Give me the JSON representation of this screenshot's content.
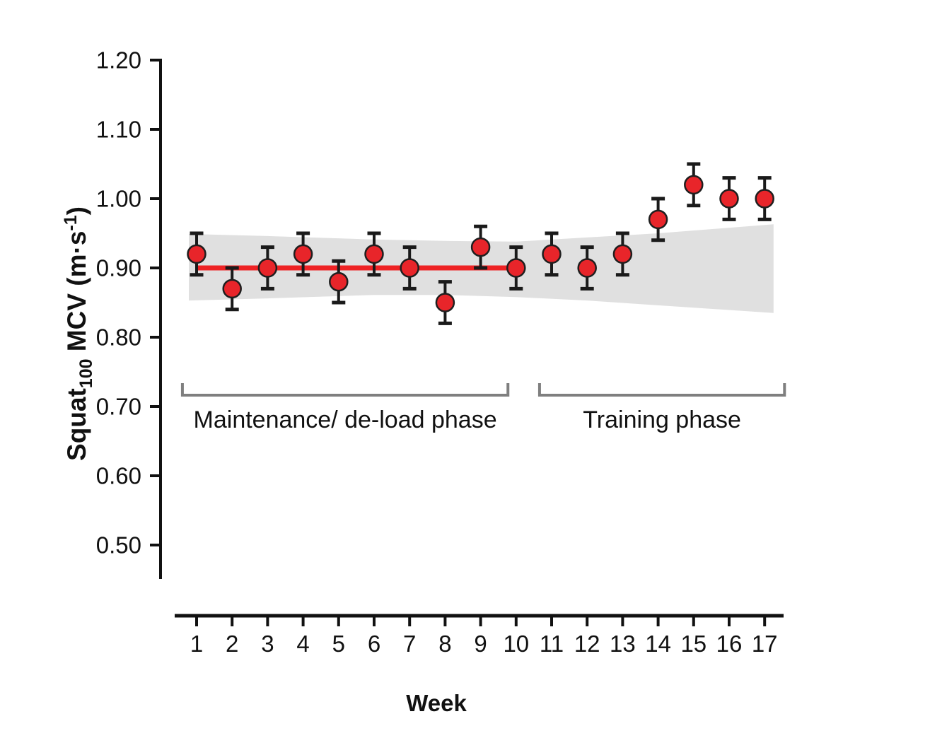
{
  "chart_data": {
    "type": "scatter",
    "title": "",
    "xlabel": "Week",
    "ylabel_parts": {
      "pre": "Squat",
      "sub": "100",
      "mid": " MCV (m·s",
      "sup": "-1",
      "post": ")"
    },
    "x_tick_labels": [
      "1",
      "2",
      "3",
      "4",
      "5",
      "6",
      "7",
      "8",
      "9",
      "10",
      "11",
      "12",
      "13",
      "14",
      "15",
      "16",
      "17"
    ],
    "y_tick_labels": [
      "1.20",
      "1.10",
      "1.00",
      "0.90",
      "0.80",
      "0.70",
      "0.60",
      "0.50"
    ],
    "ylim": [
      0.45,
      1.2
    ],
    "xlim": [
      0.4,
      17.6
    ],
    "grid": false,
    "legend": "none",
    "weeks": [
      1,
      2,
      3,
      4,
      5,
      6,
      7,
      8,
      9,
      10,
      11,
      12,
      13,
      14,
      15,
      16,
      17
    ],
    "values": [
      0.92,
      0.87,
      0.9,
      0.92,
      0.88,
      0.92,
      0.9,
      0.85,
      0.93,
      0.9,
      0.92,
      0.9,
      0.92,
      0.97,
      1.02,
      1.0,
      1.0
    ],
    "error": 0.03,
    "mean_line": {
      "value": 0.9,
      "week_start": 1,
      "week_end": 10
    },
    "band": [
      {
        "week": 0.78,
        "top": 0.949,
        "bottom": 0.853
      },
      {
        "week": 3,
        "top": 0.946,
        "bottom": 0.856
      },
      {
        "week": 6,
        "top": 0.941,
        "bottom": 0.861
      },
      {
        "week": 8,
        "top": 0.939,
        "bottom": 0.861
      },
      {
        "week": 10,
        "top": 0.938,
        "bottom": 0.858
      },
      {
        "week": 12,
        "top": 0.944,
        "bottom": 0.853
      },
      {
        "week": 14,
        "top": 0.95,
        "bottom": 0.846
      },
      {
        "week": 17.25,
        "top": 0.963,
        "bottom": 0.835
      }
    ],
    "phases": [
      {
        "label": "Maintenance/ de-load phase",
        "week_start": 0.6,
        "week_end": 9.77
      },
      {
        "label": "Training phase",
        "week_start": 10.66,
        "week_end": 17.56
      }
    ],
    "colors": {
      "marker_fill": "#e8252a",
      "marker_edge": "#1f1f1f",
      "error_bar": "#1a1a1a",
      "mean_line": "#ee2224",
      "band": "#e0e0e0",
      "bracket": "#7f7f7f",
      "axis": "#111111",
      "background": "#ffffff"
    }
  }
}
